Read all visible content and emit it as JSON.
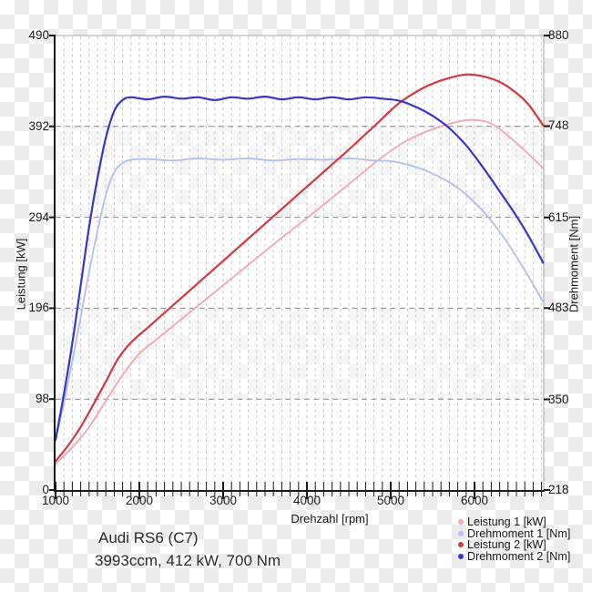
{
  "caption": {
    "line1": "Audi RS6 (C7)",
    "line2": "3993ccm, 412 kW, 700 Nm"
  },
  "axes": {
    "x": {
      "label": "Drehzahl [rpm]"
    },
    "y_left": {
      "label": "Leistung [kW]"
    },
    "y_right": {
      "label": "Drehmoment [Nm]"
    }
  },
  "colors": {
    "leistung1": "#f4a9b4",
    "drehmoment1": "#b6c1ec",
    "leistung2": "#d63840",
    "drehmoment2": "#3636cf",
    "grid_minor": "#c9c9c9",
    "grid_major_h": "#8a8a8a",
    "frame_thin": "#a5a5a5",
    "axis": "#1a1a1a"
  },
  "chart_data": {
    "type": "line",
    "title": "",
    "xlabel": "Drehzahl [rpm]",
    "ylabel_left": "Leistung [kW]",
    "ylabel_right": "Drehmoment [Nm]",
    "x_axis": {
      "min": 1000,
      "max": 6826,
      "major_ticks": [
        1000,
        2000,
        3000,
        4000,
        5000,
        6000
      ],
      "minor_step": 100,
      "grid": "dashed-minor"
    },
    "y_left": {
      "min": 0,
      "max": 490,
      "ticks": [
        0,
        98,
        196,
        294,
        392,
        490
      ],
      "grid": "dashed-at-inner-ticks"
    },
    "y_right": {
      "min": 218,
      "max": 880,
      "ticks": [
        218,
        350,
        483,
        615,
        748,
        880
      ]
    },
    "legend_position": "bottom-right",
    "series": [
      {
        "name": "Leistung 1 [kW]",
        "axis": "left",
        "color": "#f4a9b4",
        "points": [
          [
            1000,
            28
          ],
          [
            1200,
            46
          ],
          [
            1400,
            68
          ],
          [
            1600,
            96
          ],
          [
            1800,
            124
          ],
          [
            2000,
            147
          ],
          [
            2200,
            162
          ],
          [
            2500,
            184
          ],
          [
            2800,
            206
          ],
          [
            3100,
            228
          ],
          [
            3400,
            250
          ],
          [
            3700,
            272
          ],
          [
            4000,
            293
          ],
          [
            4300,
            315
          ],
          [
            4600,
            337
          ],
          [
            4900,
            359
          ],
          [
            5200,
            377
          ],
          [
            5500,
            389
          ],
          [
            5800,
            397
          ],
          [
            6000,
            399
          ],
          [
            6200,
            395
          ],
          [
            6400,
            382
          ],
          [
            6600,
            366
          ],
          [
            6820,
            347
          ]
        ]
      },
      {
        "name": "Drehmoment 1 [Nm]",
        "axis": "right",
        "color": "#b6c1ec",
        "points": [
          [
            1000,
            291
          ],
          [
            1100,
            345
          ],
          [
            1200,
            405
          ],
          [
            1300,
            470
          ],
          [
            1400,
            535
          ],
          [
            1500,
            595
          ],
          [
            1600,
            648
          ],
          [
            1700,
            681
          ],
          [
            1800,
            694
          ],
          [
            1900,
            699
          ],
          [
            2100,
            700
          ],
          [
            2400,
            698
          ],
          [
            2700,
            701
          ],
          [
            3000,
            699
          ],
          [
            3300,
            701
          ],
          [
            3600,
            698
          ],
          [
            3900,
            700
          ],
          [
            4200,
            699
          ],
          [
            4500,
            701
          ],
          [
            4800,
            698
          ],
          [
            5000,
            697
          ],
          [
            5200,
            692
          ],
          [
            5400,
            684
          ],
          [
            5600,
            673
          ],
          [
            5800,
            658
          ],
          [
            6000,
            637
          ],
          [
            6200,
            610
          ],
          [
            6400,
            577
          ],
          [
            6600,
            538
          ],
          [
            6820,
            492
          ]
        ]
      },
      {
        "name": "Leistung 2 [kW]",
        "axis": "left",
        "color": "#d63840",
        "points": [
          [
            1000,
            31
          ],
          [
            1150,
            48
          ],
          [
            1300,
            68
          ],
          [
            1450,
            92
          ],
          [
            1600,
            117
          ],
          [
            1750,
            142
          ],
          [
            1900,
            159
          ],
          [
            2100,
            175
          ],
          [
            2400,
            199
          ],
          [
            2700,
            223
          ],
          [
            3000,
            247
          ],
          [
            3300,
            271
          ],
          [
            3600,
            295
          ],
          [
            3900,
            319
          ],
          [
            4200,
            343
          ],
          [
            4500,
            367
          ],
          [
            4800,
            392
          ],
          [
            5100,
            417
          ],
          [
            5400,
            434
          ],
          [
            5650,
            443
          ],
          [
            5900,
            448
          ],
          [
            6100,
            446
          ],
          [
            6300,
            440
          ],
          [
            6500,
            428
          ],
          [
            6650,
            415
          ],
          [
            6820,
            393
          ]
        ]
      },
      {
        "name": "Drehmoment 2 [Nm]",
        "axis": "right",
        "color": "#3636cf",
        "points": [
          [
            1000,
            291
          ],
          [
            1100,
            358
          ],
          [
            1200,
            432
          ],
          [
            1300,
            516
          ],
          [
            1400,
            601
          ],
          [
            1500,
            672
          ],
          [
            1600,
            731
          ],
          [
            1700,
            770
          ],
          [
            1800,
            786
          ],
          [
            1900,
            790
          ],
          [
            2100,
            787
          ],
          [
            2300,
            791
          ],
          [
            2500,
            788
          ],
          [
            2700,
            790
          ],
          [
            2900,
            786
          ],
          [
            3100,
            790
          ],
          [
            3300,
            788
          ],
          [
            3500,
            791
          ],
          [
            3700,
            787
          ],
          [
            3900,
            790
          ],
          [
            4100,
            787
          ],
          [
            4300,
            790
          ],
          [
            4500,
            787
          ],
          [
            4700,
            790
          ],
          [
            4900,
            788
          ],
          [
            5100,
            785
          ],
          [
            5300,
            776
          ],
          [
            5500,
            763
          ],
          [
            5700,
            745
          ],
          [
            5900,
            720
          ],
          [
            6100,
            688
          ],
          [
            6300,
            653
          ],
          [
            6500,
            617
          ],
          [
            6650,
            587
          ],
          [
            6820,
            549
          ]
        ]
      }
    ]
  }
}
